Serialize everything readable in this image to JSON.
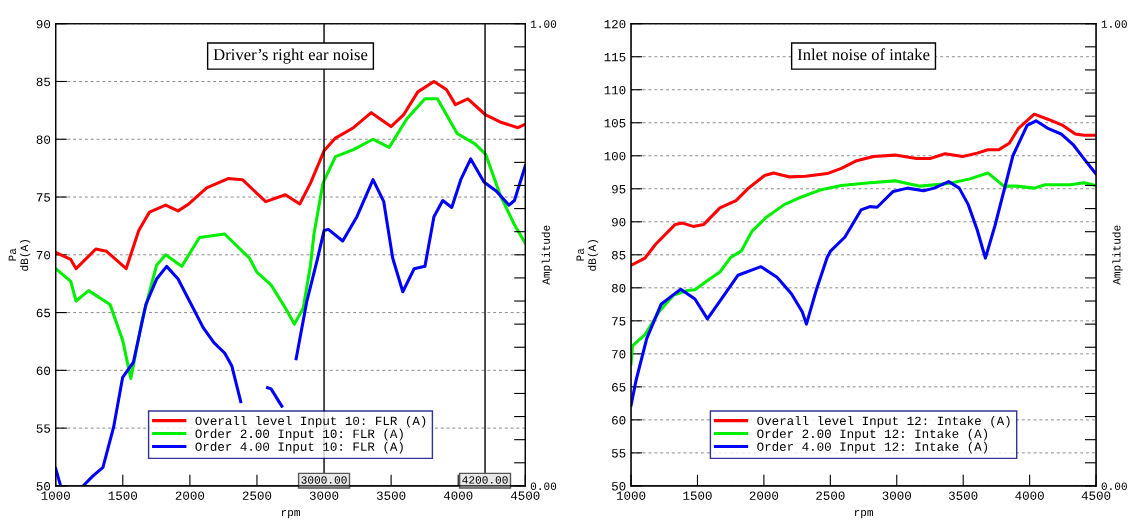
{
  "chart_data": [
    {
      "type": "line",
      "title": "Driver’s right ear noise",
      "xlabel": "rpm",
      "ylabel": "Pa\ndB(A)",
      "y2label": "Amplitude",
      "xlim": [
        1000,
        4500
      ],
      "xticks": [
        1000,
        1500,
        2000,
        2500,
        3000,
        3500,
        4000,
        4500
      ],
      "ylim": [
        50,
        90
      ],
      "yticks": [
        50,
        55,
        60,
        65,
        70,
        75,
        80,
        85,
        90
      ],
      "y2lim": [
        0,
        1
      ],
      "y2ticks": [
        {
          "value": 0,
          "label": "0.00"
        },
        {
          "value": 0.05,
          "label": null
        },
        {
          "value": 0.1,
          "label": null
        },
        {
          "value": 0.15,
          "label": null
        },
        {
          "value": 0.2,
          "label": null
        },
        {
          "value": 0.25,
          "label": null
        },
        {
          "value": 0.3,
          "label": null
        },
        {
          "value": 0.35,
          "label": null
        },
        {
          "value": 0.4,
          "label": null
        },
        {
          "value": 0.45,
          "label": null
        },
        {
          "value": 0.5,
          "label": null
        },
        {
          "value": 0.55,
          "label": null
        },
        {
          "value": 0.6,
          "label": null
        },
        {
          "value": 0.65,
          "label": null
        },
        {
          "value": 0.7,
          "label": null
        },
        {
          "value": 0.75,
          "label": null
        },
        {
          "value": 0.8,
          "label": null
        },
        {
          "value": 0.85,
          "label": null
        },
        {
          "value": 0.9,
          "label": null
        },
        {
          "value": 0.95,
          "label": null
        },
        {
          "value": 1,
          "label": "1.00"
        }
      ],
      "grid": "y",
      "legend": "bottom",
      "marker": "none",
      "line_style": "solid",
      "ref_lines": [
        {
          "axis": "x",
          "value": 3000,
          "label": "3000.00",
          "color": "#000000"
        },
        {
          "axis": "x",
          "value": 4200,
          "label": "4200.00",
          "color": "#000000"
        }
      ],
      "series": [
        {
          "name": "Overall level Input 10: FLR (A)",
          "color": "#ff0000",
          "x": [
            1000,
            1112,
            1152,
            1299,
            1379,
            1525,
            1619,
            1699,
            1819,
            1912,
            1992,
            2125,
            2285,
            2392,
            2565,
            2712,
            2819,
            2899,
            3000,
            3085,
            3219,
            3352,
            3499,
            3592,
            3699,
            3819,
            3912,
            3979,
            4072,
            4205,
            4312,
            4445,
            4500
          ],
          "values": [
            70.2,
            69.6,
            68.8,
            70.5,
            70.3,
            68.8,
            72.1,
            73.7,
            74.3,
            73.8,
            74.4,
            75.8,
            76.6,
            76.5,
            74.6,
            75.2,
            74.4,
            76.2,
            79.0,
            80.1,
            81.0,
            82.3,
            81.1,
            82.1,
            84.1,
            85.0,
            84.3,
            83.0,
            83.5,
            82.1,
            81.5,
            81.0,
            81.3
          ]
        },
        {
          "name": "Order 2.00 Input 10: FLR (A)",
          "color": "#00ee00",
          "x": [
            1000,
            1112,
            1152,
            1245,
            1405,
            1499,
            1560,
            1645,
            1752,
            1819,
            1939,
            2072,
            2259,
            2445,
            2499,
            2605,
            2712,
            2779,
            2845,
            2899,
            2925,
            2992,
            3085,
            3219,
            3365,
            3485,
            3619,
            3752,
            3845,
            3992,
            4125,
            4205,
            4312,
            4419,
            4500
          ],
          "values": [
            68.8,
            67.7,
            66.0,
            66.9,
            65.7,
            62.6,
            59.3,
            64.4,
            69.1,
            70.0,
            69.0,
            71.5,
            71.8,
            69.7,
            68.5,
            67.4,
            65.4,
            64.0,
            65.4,
            69.1,
            71.8,
            76.2,
            78.5,
            79.1,
            80.0,
            79.3,
            81.8,
            83.5,
            83.5,
            80.5,
            79.6,
            78.7,
            75.2,
            72.6,
            71.0
          ]
        },
        {
          "name": "Order 4.00 Input 10: FLR (A)",
          "color": "#0000ff",
          "x": [
            1000,
            1032,
            1100,
            1213,
            1272,
            1352,
            1432,
            1499,
            1579,
            1672,
            1752,
            1827,
            1912,
            2019,
            2099,
            2179,
            2259,
            2312,
            2379,
            2405,
            2445,
            2579,
            2605,
            2685,
            2725,
            2792,
            2872,
            2952,
            3000,
            3032,
            3139,
            3245,
            3365,
            3445,
            3512,
            3587,
            3672,
            3752,
            3819,
            3885,
            3952,
            4019,
            4093,
            4192,
            4285,
            4379,
            4419,
            4500
          ],
          "values": [
            51.5,
            50.2,
            null,
            50.1,
            50.8,
            51.6,
            55.1,
            59.4,
            60.7,
            65.7,
            67.9,
            69.0,
            67.9,
            65.5,
            63.7,
            62.4,
            61.5,
            60.4,
            57.3,
            null,
            null,
            58.5,
            58.4,
            56.9,
            null,
            61.0,
            66.0,
            69.7,
            72.1,
            72.2,
            71.2,
            73.3,
            76.5,
            74.6,
            69.7,
            66.8,
            68.8,
            69.0,
            73.3,
            74.7,
            74.1,
            76.5,
            78.3,
            76.3,
            75.5,
            74.3,
            74.7,
            77.7
          ]
        }
      ]
    },
    {
      "type": "line",
      "title": "Inlet noise of intake",
      "xlabel": "rpm",
      "ylabel": "Pa\ndB(A)",
      "y2label": "Amplitude",
      "xlim": [
        1000,
        4500
      ],
      "xticks": [
        1000,
        1500,
        2000,
        2500,
        3000,
        3500,
        4000,
        4500
      ],
      "ylim": [
        50,
        120
      ],
      "yticks": [
        50,
        55,
        60,
        65,
        70,
        75,
        80,
        85,
        90,
        95,
        100,
        105,
        110,
        115,
        120
      ],
      "y2lim": [
        0,
        1
      ],
      "y2ticks": [
        {
          "value": 0,
          "label": "0.00"
        },
        {
          "value": 0.05,
          "label": null
        },
        {
          "value": 0.1,
          "label": null
        },
        {
          "value": 0.15,
          "label": null
        },
        {
          "value": 0.2,
          "label": null
        },
        {
          "value": 0.25,
          "label": null
        },
        {
          "value": 0.3,
          "label": null
        },
        {
          "value": 0.35,
          "label": null
        },
        {
          "value": 0.4,
          "label": null
        },
        {
          "value": 0.45,
          "label": null
        },
        {
          "value": 0.5,
          "label": null
        },
        {
          "value": 0.55,
          "label": null
        },
        {
          "value": 0.6,
          "label": null
        },
        {
          "value": 0.65,
          "label": null
        },
        {
          "value": 0.7,
          "label": null
        },
        {
          "value": 0.75,
          "label": null
        },
        {
          "value": 0.8,
          "label": null
        },
        {
          "value": 0.85,
          "label": null
        },
        {
          "value": 0.9,
          "label": null
        },
        {
          "value": 0.95,
          "label": null
        },
        {
          "value": 1,
          "label": "1.00"
        }
      ],
      "grid": "y",
      "legend": "bottom",
      "marker": "none",
      "line_style": "solid",
      "series": [
        {
          "name": "Overall level Input 12: Intake (A)",
          "color": "#ff0000",
          "x": [
            1000,
            1105,
            1185,
            1333,
            1387,
            1468,
            1548,
            1669,
            1790,
            1884,
            2005,
            2073,
            2194,
            2315,
            2476,
            2583,
            2691,
            2825,
            2987,
            3148,
            3255,
            3363,
            3497,
            3605,
            3685,
            3766,
            3847,
            3914,
            4035,
            4142,
            4250,
            4344,
            4411,
            4497
          ],
          "values": [
            83.4,
            84.5,
            86.6,
            89.6,
            89.8,
            89.3,
            89.6,
            92.1,
            93.2,
            95.1,
            97.0,
            97.4,
            96.8,
            96.9,
            97.3,
            98.1,
            99.2,
            99.9,
            100.1,
            99.6,
            99.6,
            100.3,
            99.9,
            100.4,
            100.9,
            100.9,
            101.9,
            104.1,
            106.3,
            105.5,
            104.6,
            103.3,
            103.1,
            103.1
          ]
        },
        {
          "name": "Order 2.00 Input 12: Intake (A)",
          "color": "#00ee00",
          "x": [
            1000,
            1011,
            1105,
            1212,
            1320,
            1427,
            1481,
            1589,
            1669,
            1750,
            1831,
            1911,
            2019,
            2153,
            2288,
            2422,
            2583,
            2798,
            2987,
            3175,
            3390,
            3551,
            3685,
            3806,
            3901,
            4035,
            4116,
            4304,
            4411,
            4497
          ],
          "values": [
            68.5,
            71.2,
            72.9,
            76.4,
            78.9,
            79.6,
            79.7,
            81.3,
            82.4,
            84.6,
            85.6,
            88.6,
            90.7,
            92.6,
            93.8,
            94.8,
            95.5,
            95.9,
            96.2,
            95.4,
            95.8,
            96.5,
            97.4,
            95.4,
            95.4,
            95.1,
            95.6,
            95.6,
            95.9,
            95.5
          ]
        },
        {
          "name": "Order 4.00 Input 12: Intake (A)",
          "color": "#0000ff",
          "x": [
            1000,
            1038,
            1118,
            1226,
            1374,
            1481,
            1575,
            1669,
            1804,
            1978,
            2099,
            2207,
            2288,
            2320,
            2395,
            2476,
            2503,
            2610,
            2731,
            2798,
            2852,
            2973,
            3081,
            3202,
            3282,
            3390,
            3470,
            3538,
            3605,
            3667,
            3739,
            3874,
            3981,
            4048,
            4142,
            4237,
            4331,
            4411,
            4497
          ],
          "values": [
            62.2,
            66.0,
            72.3,
            77.5,
            79.8,
            78.3,
            75.3,
            78.0,
            81.9,
            83.2,
            81.6,
            79.1,
            76.4,
            74.5,
            79.7,
            84.6,
            85.6,
            87.7,
            91.8,
            92.3,
            92.2,
            94.6,
            95.1,
            94.7,
            95.1,
            96.1,
            95.1,
            92.6,
            88.8,
            84.5,
            89.4,
            100.0,
            104.6,
            105.3,
            104.1,
            103.3,
            101.6,
            99.5,
            97.3
          ]
        }
      ]
    }
  ]
}
